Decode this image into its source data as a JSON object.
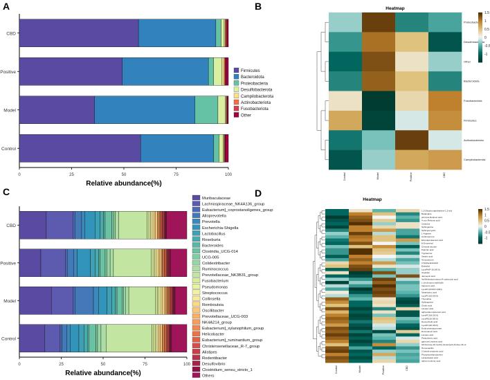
{
  "chart_data": [
    {
      "panel": "A",
      "type": "bar",
      "orientation": "horizontal",
      "stacked": true,
      "categories": [
        "CBD",
        "Positive",
        "Model",
        "Control"
      ],
      "xlabel": "Relative abundance(%)",
      "ylabel": "",
      "xlim": [
        0,
        100
      ],
      "xticks": [
        "0",
        "25",
        "50",
        "75",
        "100"
      ],
      "series": [
        {
          "name": "Firmicutes",
          "color": "#5a4aa1",
          "values": [
            57,
            49,
            36,
            58
          ]
        },
        {
          "name": "Bacteroidota",
          "color": "#3182bd",
          "values": [
            37,
            41,
            48,
            35
          ]
        },
        {
          "name": "Proteobacteria",
          "color": "#66c2a4",
          "values": [
            2.5,
            2.5,
            11,
            2.5
          ]
        },
        {
          "name": "Desulfobacterota",
          "color": "#d9f0a3",
          "values": [
            1.5,
            4,
            3.5,
            2
          ]
        },
        {
          "name": "Campilobacterota",
          "color": "#fee08b",
          "values": [
            0.5,
            1,
            0.5,
            0.5
          ]
        },
        {
          "name": "Actinobacteriota",
          "color": "#f46d43",
          "values": [
            0.5,
            0.5,
            0.3,
            0.3
          ]
        },
        {
          "name": "Fusobacteriota",
          "color": "#d53e4f",
          "values": [
            0.3,
            0.3,
            0.2,
            0.2
          ]
        },
        {
          "name": "Other",
          "color": "#9e0142",
          "values": [
            0.7,
            1.2,
            0.5,
            1.5
          ]
        }
      ]
    },
    {
      "panel": "B",
      "type": "heatmap",
      "title": "Heatmap",
      "columns": [
        "Control",
        "Model",
        "Positive",
        "CBD"
      ],
      "rows": [
        "Proteobacteria",
        "Desulfobacterota",
        "Other",
        "Bacteroidota",
        "Fusobacteriota",
        "Firmicutes",
        "Actinobacteriota",
        "Campilobacterota"
      ],
      "values": [
        [
          -0.3,
          1.4,
          -0.8,
          -0.6
        ],
        [
          -0.7,
          1.1,
          0.5,
          -1.2
        ],
        [
          -1.0,
          1.3,
          0.2,
          -0.3
        ],
        [
          -0.8,
          1.2,
          0.5,
          -0.8
        ],
        [
          0.2,
          -1.5,
          0.3,
          1.0
        ],
        [
          0.7,
          -1.4,
          -0.1,
          0.9
        ],
        [
          -0.9,
          -0.4,
          1.4,
          -0.1
        ],
        [
          -1.2,
          -0.3,
          0.7,
          0.8
        ]
      ],
      "scale": {
        "min": -1.5,
        "max": 1.5,
        "ticks": [
          "1.5",
          "1",
          "0.5",
          "0",
          "-0.5",
          "-1"
        ]
      }
    },
    {
      "panel": "C",
      "type": "bar",
      "orientation": "horizontal",
      "stacked": true,
      "categories": [
        "CBD",
        "Positive",
        "Model",
        "Control"
      ],
      "xlabel": "Relative abundance(%)",
      "ylabel": "",
      "xlim": [
        0,
        100
      ],
      "xticks": [
        "0",
        "25",
        "50",
        "75",
        "100"
      ],
      "legend": [
        "Muribaculaceae",
        "Lachnospiraceae_NK4A136_group",
        "Eubacterium]_coprostanoligenes_group",
        "Alloprevotella",
        "Prevotella",
        "Escherichia-Shigella",
        "Lactobacillus",
        "Roseburia",
        "Bacteroides",
        "Clostridia_UCG-014",
        "UCG-005",
        "Colidextribacter",
        "Ruminococcus",
        "Prevotellaceae_NK3B31_group",
        "Fusobacterium",
        "Pseudomonas",
        "Streptococcus",
        "Collinsella",
        "Romboutsia",
        "Oscillibacter",
        "Prevotellaceae_UCG-003",
        "NK4A214_group",
        "Eubacterium]_xylanophilum_group",
        "Helicobacter",
        "Eubacterium]_ruminantium_group",
        "Christensenellaceae_R-7_group",
        "Alistipes",
        "Rodentibacter",
        "Desulfovibrio",
        "Clostridium_sensu_stricto_1",
        "Others"
      ],
      "colors": [
        "#5a4aa1",
        "#5c5bb0",
        "#4e6ab4",
        "#4479b8",
        "#3b88bc",
        "#3394bb",
        "#3da0b4",
        "#4aabae",
        "#5ab7a7",
        "#6ac2a3",
        "#80cca3",
        "#96d5a4",
        "#acdea4",
        "#c2e6a2",
        "#d6ee9b",
        "#e6f49c",
        "#f2f3a2",
        "#fae89a",
        "#fdd885",
        "#fdc575",
        "#fcb065",
        "#f99c59",
        "#f4874f",
        "#ee7248",
        "#e45f46",
        "#d84c48",
        "#c93d49",
        "#b8304b",
        "#a6214a",
        "#920f45",
        "#a0155a"
      ],
      "series_values": [
        [
          16,
          16,
          1,
          4,
          2,
          6,
          3,
          2,
          1,
          4,
          1,
          1,
          2,
          17,
          1,
          1,
          1,
          1,
          1,
          1,
          0.6,
          0.6,
          0.6,
          0.6,
          0.6,
          0.6,
          0.5,
          0.5,
          0.5,
          0.5,
          12
        ],
        [
          13,
          15,
          1,
          4,
          2,
          8,
          3,
          2,
          1,
          3,
          1,
          2,
          2,
          23,
          1,
          1,
          1,
          1,
          1,
          1,
          0.6,
          0.6,
          0.6,
          0.6,
          0.6,
          0.5,
          0.5,
          0.5,
          0.5,
          0.5,
          10
        ],
        [
          19,
          13,
          1,
          11,
          3,
          5,
          3,
          2,
          1,
          3,
          1,
          1,
          2,
          16,
          1,
          1,
          1,
          1,
          1,
          1,
          0.6,
          0.6,
          0.6,
          0.6,
          0.6,
          0.5,
          0.5,
          0.5,
          0.5,
          0.5,
          7
        ],
        [
          15,
          9,
          1,
          3,
          2,
          5,
          3,
          2,
          1,
          4,
          1,
          2,
          3,
          27,
          1,
          1,
          1,
          1,
          1,
          1,
          0.6,
          0.6,
          0.6,
          0.6,
          0.6,
          0.5,
          0.5,
          0.5,
          0.5,
          0.5,
          9
        ]
      ]
    },
    {
      "panel": "D",
      "type": "heatmap",
      "title": "Heatmap",
      "columns": [
        "Control",
        "Model",
        "Positive",
        "CBD"
      ],
      "rows": [
        "1,2-Dihydronaphthalene-1,2-diol",
        "Betaingine",
        "all-trans-Retinoic acid",
        "4-oxo-Retinoic acid",
        "Catechol",
        "Sphinganine",
        "Sphingomyelin",
        "L-Arginine",
        "Androsterone",
        "Eicosapentaenoic acid",
        "8-Oxoretinol",
        "Cervical alcohol",
        "Palmitic acid",
        "Tryptamine",
        "Stearic acid",
        "Testosterone",
        "17alpha-Estradiol",
        "Estradiol",
        "LysoPA(P-16:0/0:0)",
        "Oxybifen",
        "Jasmonic acid",
        "4a-Methylzymosterol-4-carboxylic acid",
        "L-cis-decanol aldehyde",
        "Vaccenic acid",
        "LysoPC(0:0/16:1(9Z))",
        "Stearidonic acid",
        "LysoPC(16:0/0:0)",
        "Thymidine",
        "Sphingosine",
        "Cholic acid",
        "Linoleic acid",
        "alpha-Dimorphecolic acid",
        "LysoPC(18:2/0:0)",
        "LysoPE(16:0/0:0)",
        "Deoxycholic acid",
        "LysoPC(20:4/0:0)",
        "Endo-phenylpyruvate",
        "Docosanoic acid",
        "Linoleic acid",
        "Pantothenic acid",
        "gamma-Linolenic acid",
        "9Z-Docosa-4Z-methyl-cholesta-8,24-dien-3b-ol",
        "Homovanillin",
        "2-Indole-propionic acid",
        "Phosphoethanolamine",
        "Lindenbalsic acid",
        "alpha-Linolenic acid"
      ],
      "values": [
        [
          -1,
          0.2,
          -0.5,
          0.3
        ],
        [
          -1,
          1,
          0.5,
          -0.8
        ],
        [
          -1.5,
          1.2,
          0,
          -0.5
        ],
        [
          -1.2,
          1.3,
          0.4,
          -0.7
        ],
        [
          -1,
          1.5,
          -0.3,
          0.2
        ],
        [
          -1.4,
          1,
          0.3,
          0.2
        ],
        [
          -0.8,
          1,
          0.8,
          -0.6
        ],
        [
          -0.3,
          1.4,
          -0.2,
          -0.6
        ],
        [
          -0.5,
          1.1,
          0.5,
          -0.9
        ],
        [
          -0.9,
          1,
          0.5,
          0.8
        ],
        [
          -1,
          1.3,
          0,
          -0.4
        ],
        [
          -0.4,
          0.5,
          0.9,
          -1.1
        ],
        [
          -0.7,
          1.5,
          0.5,
          -0.4
        ],
        [
          -0.7,
          1.5,
          0.4,
          -0.8
        ],
        [
          -1.1,
          1,
          0,
          -0.2
        ],
        [
          -0.6,
          1.2,
          -0.2,
          -0.6
        ],
        [
          0.3,
          1,
          0.8,
          -0.4
        ],
        [
          0.5,
          1.3,
          0.2,
          -0.1
        ],
        [
          -1,
          1.4,
          -0.5,
          -0.3
        ],
        [
          0.2,
          -1.5,
          1.3,
          -0.3
        ],
        [
          -1,
          -1.3,
          -0.4,
          1.3
        ],
        [
          -0.3,
          -0.7,
          1.4,
          -0.2
        ],
        [
          -1.4,
          -0.3,
          1.2,
          -0.6
        ],
        [
          -0.2,
          -0.7,
          1.5,
          -0.4
        ],
        [
          -0.6,
          -1.5,
          1.3,
          -0.4
        ],
        [
          0.1,
          -1.2,
          1.4,
          -0.5
        ],
        [
          -0.2,
          -0.7,
          1.3,
          -0.7
        ],
        [
          1.2,
          -0.5,
          0.2,
          -1.2
        ],
        [
          0.9,
          -1,
          0.3,
          -1.4
        ],
        [
          0.5,
          -1,
          0.2,
          -1.1
        ],
        [
          1.3,
          -1.4,
          -0.8,
          0.3
        ],
        [
          0.6,
          -1.1,
          0.2,
          -1.2
        ],
        [
          1,
          -1.4,
          -0.4,
          -1.2
        ],
        [
          1.2,
          -1.3,
          0.5,
          -0.4
        ],
        [
          1.1,
          -0.9,
          0.4,
          -0.6
        ],
        [
          0.8,
          -1.2,
          -0.1,
          -1
        ],
        [
          1.3,
          -1.4,
          -0.2,
          -1.2
        ],
        [
          1.2,
          -0.9,
          -1.3,
          0.4
        ],
        [
          1.4,
          -1.4,
          -0.4,
          -1
        ],
        [
          1.2,
          -1.1,
          -0.5,
          -0.1
        ],
        [
          1,
          -1.4,
          -0.8,
          0.3
        ],
        [
          0.5,
          -1.1,
          0.9,
          -0.3
        ],
        [
          1.3,
          -0.6,
          -1,
          -0.7
        ],
        [
          1.4,
          -1.2,
          -0.3,
          -0.4
        ],
        [
          1,
          -1,
          0.7,
          -0.6
        ],
        [
          1.3,
          -1.3,
          -0.2,
          -0.5
        ],
        [
          1.2,
          -1,
          0.3,
          -0.6
        ]
      ],
      "scale": {
        "min": -1.5,
        "max": 1.5,
        "ticks": [
          "1.5",
          "1",
          "0.5",
          "0",
          "-0.5",
          "-1"
        ]
      }
    }
  ]
}
